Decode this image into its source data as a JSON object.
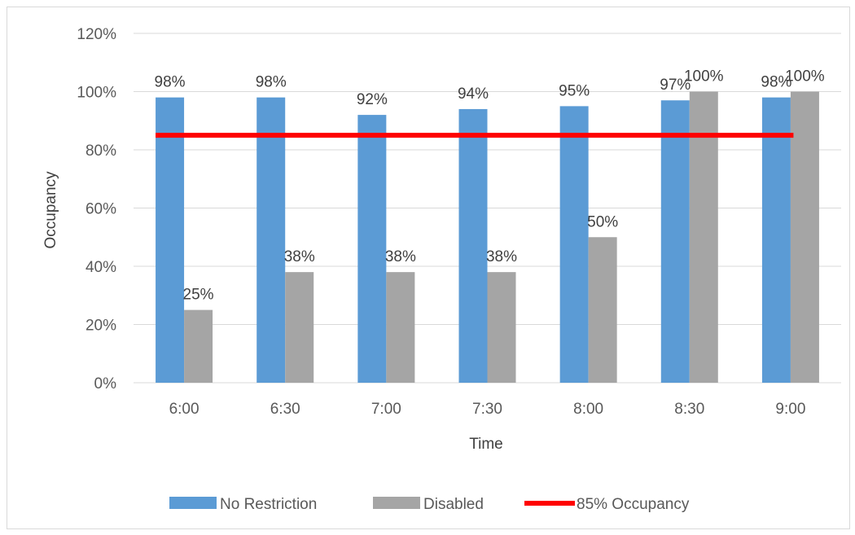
{
  "chart_data": {
    "type": "bar",
    "categories": [
      "6:00",
      "6:30",
      "7:00",
      "7:30",
      "8:00",
      "8:30",
      "9:00"
    ],
    "series": [
      {
        "name": "No Restriction",
        "values": [
          98,
          98,
          92,
          94,
          95,
          97,
          98
        ],
        "labels": [
          "98%",
          "98%",
          "92%",
          "94%",
          "95%",
          "97%",
          "98%"
        ],
        "color": "#5b9bd5"
      },
      {
        "name": "Disabled",
        "values": [
          25,
          38,
          38,
          38,
          50,
          100,
          100
        ],
        "labels": [
          "25%",
          "38%",
          "38%",
          "38%",
          "50%",
          "100%",
          "100%"
        ],
        "color": "#a5a5a5"
      }
    ],
    "reference_line": {
      "name": "85% Occupancy",
      "value": 85,
      "color": "#ff0000"
    },
    "xlabel": "Time",
    "ylabel": "Occupancy",
    "ylim": [
      0,
      120
    ],
    "yticks": [
      "0%",
      "20%",
      "40%",
      "60%",
      "80%",
      "100%",
      "120%"
    ],
    "grid": true,
    "legend_position": "bottom"
  }
}
